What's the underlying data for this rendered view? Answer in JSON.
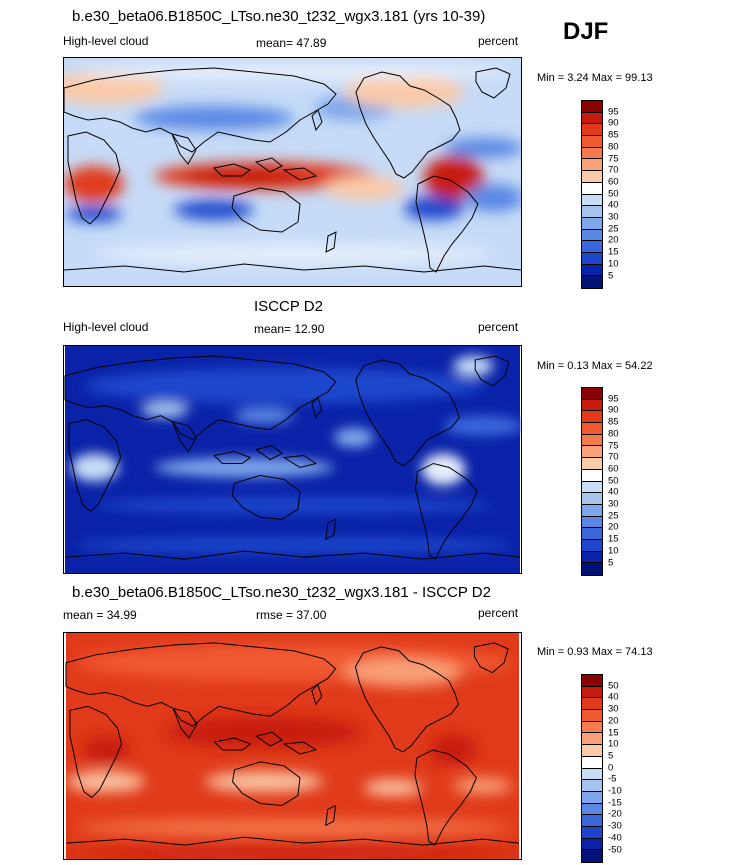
{
  "season": "DJF",
  "panels": [
    {
      "title": "b.e30_beta06.B1850C_LTso.ne30_t232_wgx3.181 (yrs 10-39)",
      "left_label": "High-level cloud",
      "center_label": "mean=  47.89",
      "right_label": "percent",
      "minmax": "Min =   3.24 Max =  99.13",
      "colorbar": {
        "levels": [
          "95",
          "90",
          "85",
          "80",
          "75",
          "70",
          "60",
          "50",
          "40",
          "30",
          "25",
          "20",
          "15",
          "10",
          "5"
        ],
        "colors": [
          "#8b0000",
          "#c81a0e",
          "#e03a1a",
          "#f05a30",
          "#f57a4e",
          "#f9a178",
          "#fbcaa8",
          "#ffffff",
          "#c8dcf6",
          "#a6c4f0",
          "#7ea6ea",
          "#5a88e4",
          "#3a68dc",
          "#1e46cc",
          "#0a22a8",
          "#00127a"
        ]
      }
    },
    {
      "title": "ISCCP D2",
      "left_label": "High-level cloud",
      "center_label": "mean=  12.90",
      "right_label": "percent",
      "minmax": "Min =   0.13 Max =  54.22",
      "colorbar": {
        "levels": [
          "95",
          "90",
          "85",
          "80",
          "75",
          "70",
          "60",
          "50",
          "40",
          "30",
          "25",
          "20",
          "15",
          "10",
          "5"
        ],
        "colors": [
          "#8b0000",
          "#c81a0e",
          "#e03a1a",
          "#f05a30",
          "#f57a4e",
          "#f9a178",
          "#fbcaa8",
          "#ffffff",
          "#c8dcf6",
          "#a6c4f0",
          "#7ea6ea",
          "#5a88e4",
          "#3a68dc",
          "#1e46cc",
          "#0a22a8",
          "#00127a"
        ]
      }
    },
    {
      "title": "b.e30_beta06.B1850C_LTso.ne30_t232_wgx3.181 - ISCCP D2",
      "left_label": "mean =  34.99",
      "center_label": "rmse =  37.00",
      "right_label": "percent",
      "minmax": "Min =   0.93 Max =  74.13",
      "colorbar": {
        "levels": [
          "50",
          "40",
          "30",
          "20",
          "15",
          "10",
          "5",
          "0",
          "-5",
          "-10",
          "-15",
          "-20",
          "-30",
          "-40",
          "-50"
        ],
        "colors": [
          "#8b0000",
          "#c81a0e",
          "#e03a1a",
          "#f05a30",
          "#f57a4e",
          "#f9a178",
          "#fbcaa8",
          "#ffffff",
          "#c8dcf6",
          "#a6c4f0",
          "#7ea6ea",
          "#5a88e4",
          "#3a68dc",
          "#1e46cc",
          "#0a22a8",
          "#00127a"
        ]
      }
    }
  ]
}
